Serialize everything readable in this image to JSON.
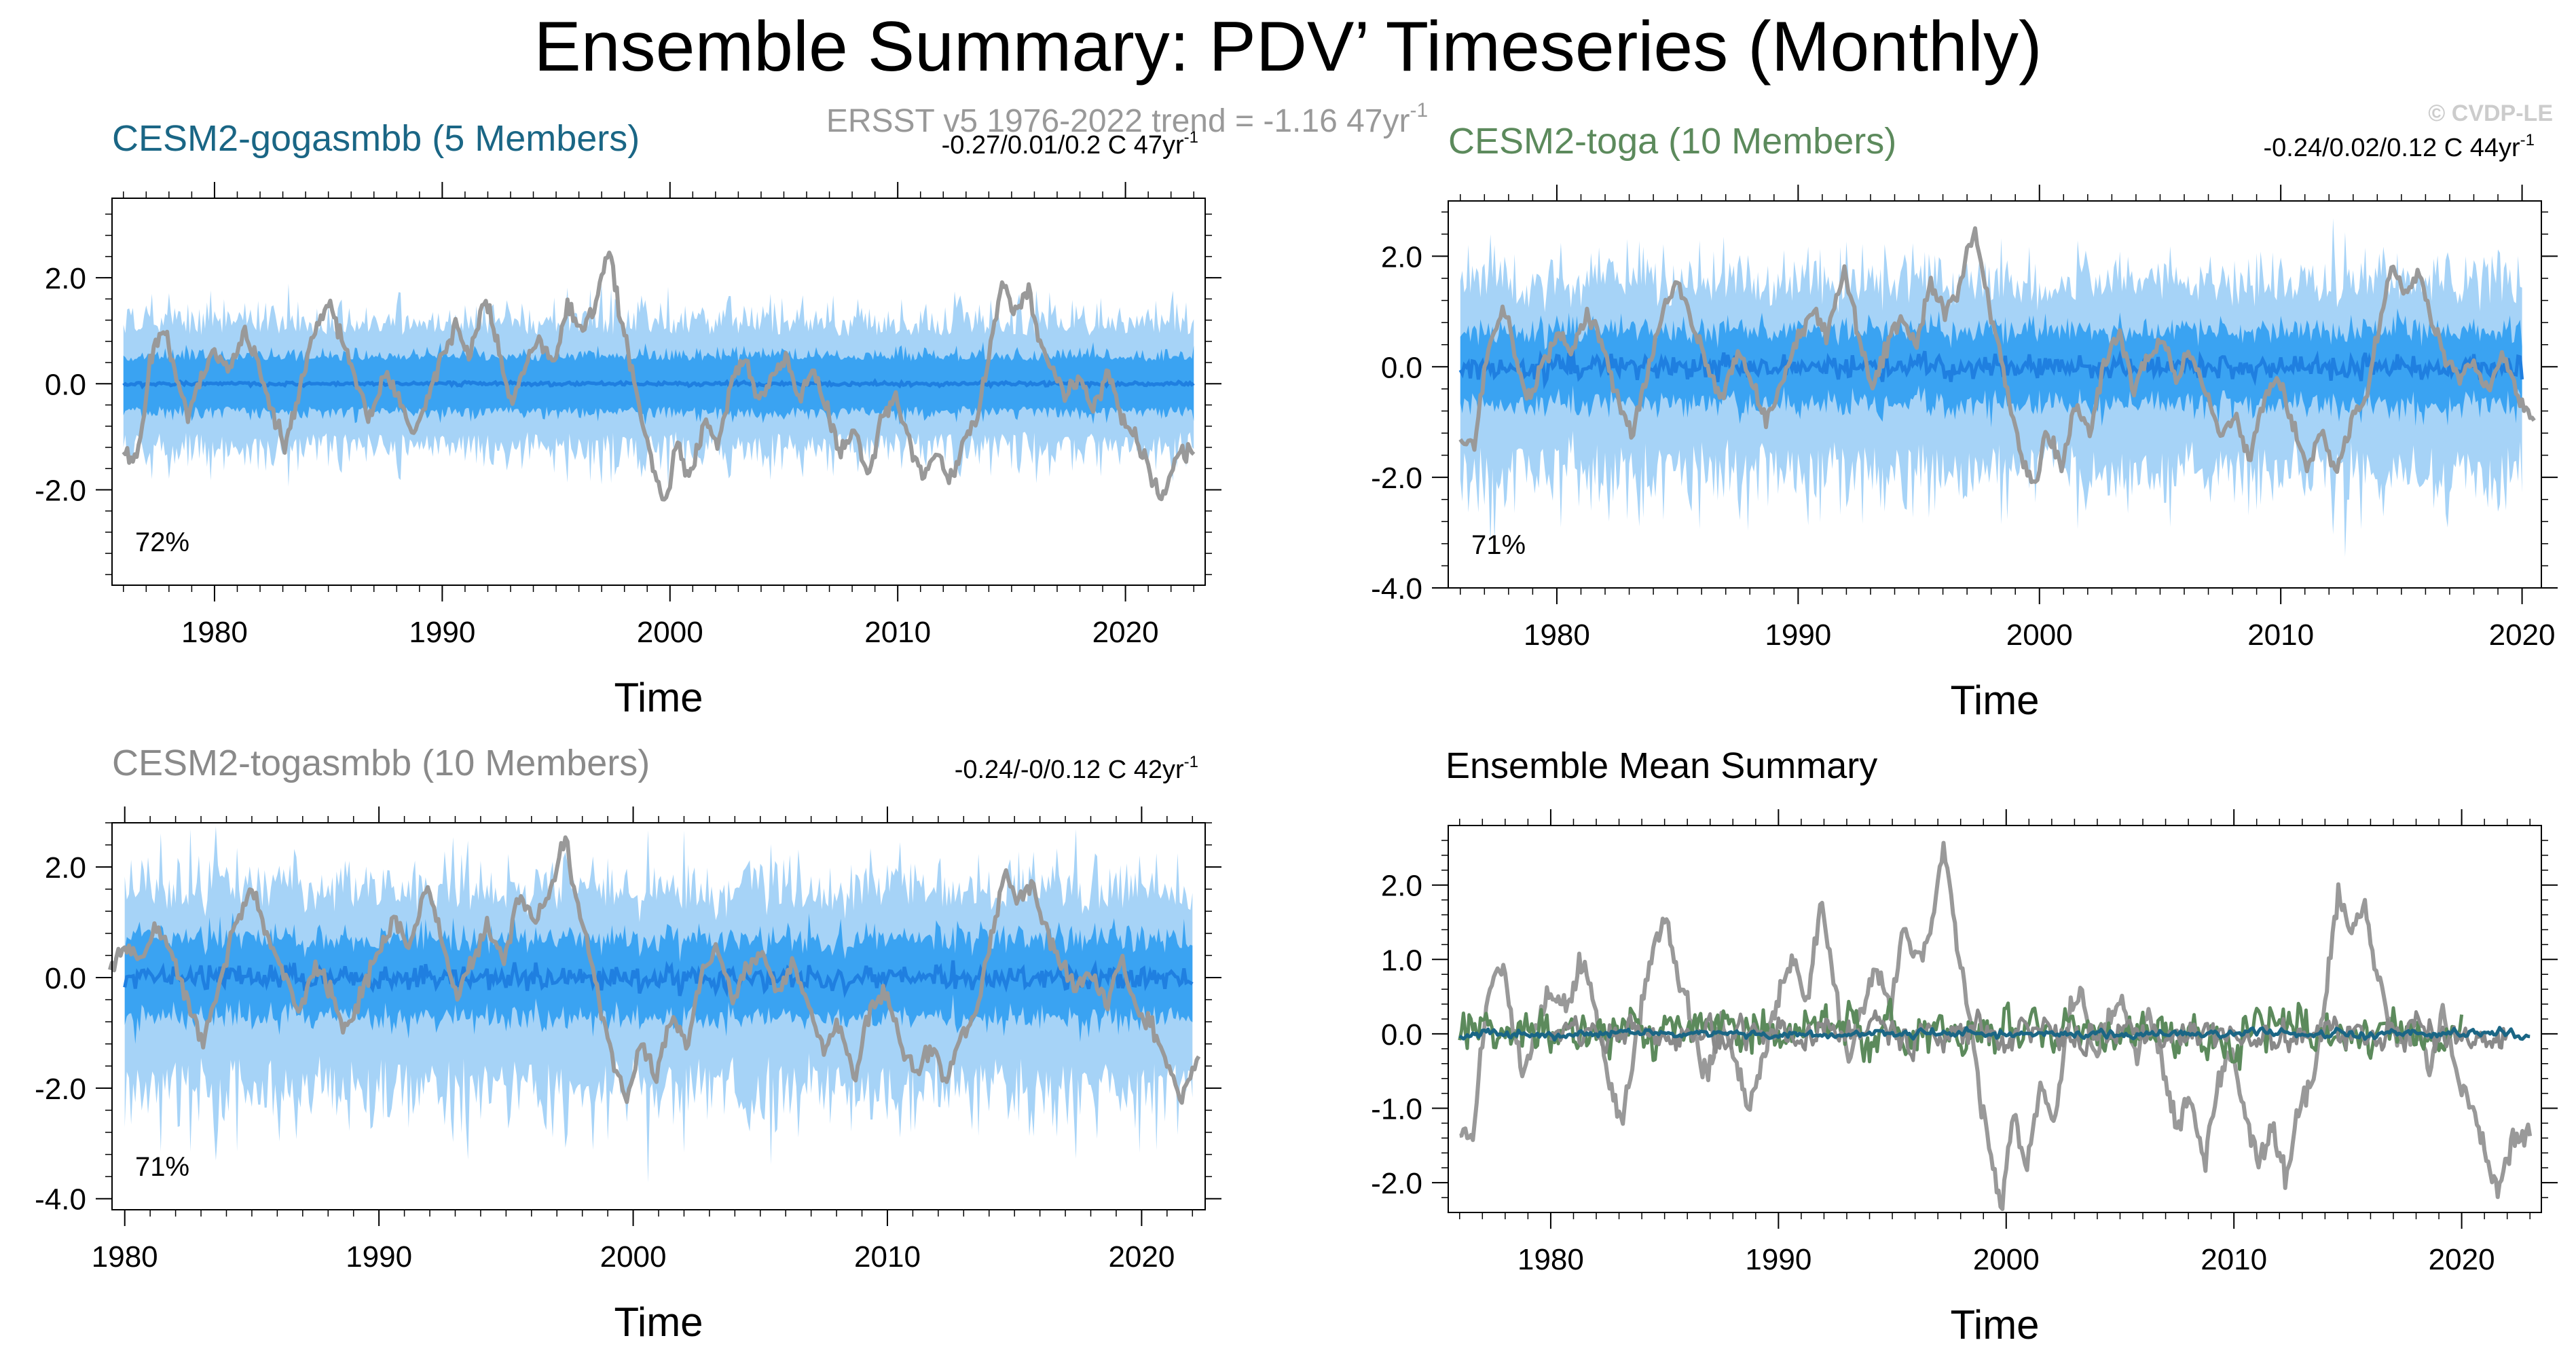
{
  "figure": {
    "title": "Ensemble Summary: PDV’ Timeseries (Monthly)",
    "observation_label": "ERSST v5 1976-2022 trend = -1.16 47yr",
    "observation_label_sup": "-1",
    "credit": "© CVDP-LE"
  },
  "colors": {
    "band_outer": "#a6d3f7",
    "band_inner": "#3aa3f2",
    "ensemble_mean": "#1f7fe0",
    "obs_line": "#999999",
    "gogasmbb": "#1a6685",
    "toga": "#5c8a5c",
    "togasmbb": "#8a8a8a"
  },
  "chart_data": [
    {
      "type": "area",
      "panel": "top-left",
      "title": "CESM2-gogasmbb (5 Members)",
      "title_color": "#1a6685",
      "trend": "-0.27/0.01/0.2 C 47yr",
      "trend_sup": "-1",
      "pct": "72%",
      "xlabel": "Time",
      "x_ticks": [
        1980,
        1990,
        2000,
        2010,
        2020
      ],
      "y_ticks": [
        -2.0,
        0.0,
        2.0
      ],
      "y_tick_labels": [
        "-2.0",
        "0.0",
        "2.0"
      ],
      "xlim": [
        1975.5,
        2023.5
      ],
      "ylim": [
        -3.8,
        3.5
      ],
      "data_start": 1976,
      "data_end": 2023,
      "obs_end": 2023,
      "band_outer": 1.15,
      "band_inner": 0.55,
      "band_asym": 0.0,
      "mean_amp": 0.03,
      "seed": 11
    },
    {
      "type": "area",
      "panel": "top-right",
      "title": "CESM2-toga (10 Members)",
      "title_color": "#5c8a5c",
      "trend": "-0.24/0.02/0.12 C 44yr",
      "trend_sup": "-1",
      "pct": "71%",
      "xlabel": "Time",
      "x_ticks": [
        1980,
        1990,
        2000,
        2010,
        2020
      ],
      "y_ticks": [
        -4.0,
        -2.0,
        0.0,
        2.0
      ],
      "y_tick_labels": [
        "-4.0",
        "-2.0",
        "0.0",
        "2.0"
      ],
      "xlim": [
        1975.5,
        2020.8
      ],
      "ylim": [
        -4.0,
        3.0
      ],
      "data_start": 1976,
      "data_end": 2020,
      "obs_end": 2020.5,
      "band_outer": 1.5,
      "band_inner": 0.7,
      "band_asym": 0.3,
      "mean_amp": 0.2,
      "seed": 23
    },
    {
      "type": "area",
      "panel": "bottom-left",
      "title": "CESM2-togasmbb (10 Members)",
      "title_color": "#8a8a8a",
      "trend": "-0.24/-0/0.12 C 42yr",
      "trend_sup": "-1",
      "pct": "71%",
      "xlabel": "Time",
      "x_ticks": [
        1980,
        1990,
        2000,
        2010,
        2020
      ],
      "y_ticks": [
        -4.0,
        -2.0,
        0.0,
        2.0
      ],
      "y_tick_labels": [
        "-4.0",
        "-2.0",
        "0.0",
        "2.0"
      ],
      "xlim": [
        1979.5,
        2022.5
      ],
      "ylim": [
        -4.2,
        2.8
      ],
      "data_start": 1980,
      "data_end": 2022,
      "obs_end": 2022.3,
      "band_outer": 1.6,
      "band_inner": 0.75,
      "band_asym": 0.35,
      "mean_amp": 0.2,
      "seed": 37
    },
    {
      "type": "line",
      "panel": "bottom-right",
      "title": "Ensemble Mean Summary",
      "title_color": "#000000",
      "xlabel": "Time",
      "x_ticks": [
        1980,
        1990,
        2000,
        2010,
        2020
      ],
      "y_ticks": [
        -2.0,
        -1.0,
        0.0,
        1.0,
        2.0
      ],
      "y_tick_labels": [
        "-2.0",
        "-1.0",
        "0.0",
        "1.0",
        "2.0"
      ],
      "xlim": [
        1975.5,
        2023.5
      ],
      "ylim": [
        -2.4,
        2.8
      ],
      "series": [
        {
          "name": "ERSST v5",
          "color": "#999999",
          "start": 1976,
          "end": 2023
        },
        {
          "name": "CESM2-toga",
          "color": "#5c8a5c",
          "start": 1976,
          "end": 2020,
          "amp": 0.3
        },
        {
          "name": "CESM2-togasmbb",
          "color": "#8a8a8a",
          "start": 1980,
          "end": 2022,
          "amp": 0.2
        },
        {
          "name": "CESM2-gogasmbb",
          "color": "#1a6685",
          "start": 1976,
          "end": 2023,
          "amp": 0.05
        }
      ]
    }
  ],
  "observed_pdv_keypoints": [
    [
      1976.0,
      -1.3
    ],
    [
      1976.6,
      -1.4
    ],
    [
      1977.2,
      0.5
    ],
    [
      1977.8,
      1.0
    ],
    [
      1978.3,
      0.2
    ],
    [
      1978.8,
      -0.6
    ],
    [
      1979.4,
      0.1
    ],
    [
      1980.0,
      0.6
    ],
    [
      1980.7,
      0.3
    ],
    [
      1981.3,
      1.0
    ],
    [
      1981.9,
      0.4
    ],
    [
      1982.5,
      -0.5
    ],
    [
      1983.1,
      -1.2
    ],
    [
      1983.7,
      -0.2
    ],
    [
      1984.3,
      0.9
    ],
    [
      1985.0,
      1.6
    ],
    [
      1985.6,
      0.8
    ],
    [
      1986.2,
      0.1
    ],
    [
      1986.8,
      -0.6
    ],
    [
      1987.5,
      0.2
    ],
    [
      1988.1,
      -0.3
    ],
    [
      1988.7,
      -1.0
    ],
    [
      1989.4,
      -0.2
    ],
    [
      1990.0,
      0.5
    ],
    [
      1990.6,
      1.1
    ],
    [
      1991.2,
      0.5
    ],
    [
      1991.9,
      1.7
    ],
    [
      1992.5,
      0.6
    ],
    [
      1993.1,
      -0.4
    ],
    [
      1993.7,
      0.4
    ],
    [
      1994.3,
      0.9
    ],
    [
      1994.9,
      0.3
    ],
    [
      1995.5,
      1.5
    ],
    [
      1996.1,
      1.0
    ],
    [
      1996.7,
      1.4
    ],
    [
      1997.3,
      2.6
    ],
    [
      1997.8,
      1.3
    ],
    [
      1998.3,
      0.4
    ],
    [
      1998.8,
      -0.7
    ],
    [
      1999.3,
      -1.6
    ],
    [
      1999.8,
      -2.3
    ],
    [
      2000.3,
      -1.1
    ],
    [
      2000.9,
      -1.8
    ],
    [
      2001.5,
      -0.7
    ],
    [
      2002.1,
      -1.2
    ],
    [
      2002.7,
      0.1
    ],
    [
      2003.3,
      0.6
    ],
    [
      2003.9,
      -0.4
    ],
    [
      2004.5,
      0.2
    ],
    [
      2005.1,
      0.5
    ],
    [
      2005.7,
      -0.3
    ],
    [
      2006.3,
      0.3
    ],
    [
      2006.9,
      -0.5
    ],
    [
      2007.5,
      -1.3
    ],
    [
      2008.1,
      -0.8
    ],
    [
      2008.7,
      -1.8
    ],
    [
      2009.3,
      -0.6
    ],
    [
      2009.9,
      -0.2
    ],
    [
      2010.5,
      -1.1
    ],
    [
      2011.1,
      -1.8
    ],
    [
      2011.7,
      -1.2
    ],
    [
      2012.3,
      -1.9
    ],
    [
      2012.9,
      -1.0
    ],
    [
      2013.5,
      -0.6
    ],
    [
      2014.0,
      0.5
    ],
    [
      2014.6,
      1.9
    ],
    [
      2015.2,
      1.3
    ],
    [
      2015.7,
      1.8
    ],
    [
      2016.2,
      0.9
    ],
    [
      2016.8,
      0.2
    ],
    [
      2017.4,
      -0.2
    ],
    [
      2018.0,
      0.1
    ],
    [
      2018.6,
      -0.5
    ],
    [
      2019.2,
      0.3
    ],
    [
      2019.8,
      -0.6
    ],
    [
      2020.4,
      -0.9
    ],
    [
      2021.0,
      -1.6
    ],
    [
      2021.6,
      -2.2
    ],
    [
      2022.2,
      -1.4
    ],
    [
      2023.0,
      -1.3
    ]
  ]
}
